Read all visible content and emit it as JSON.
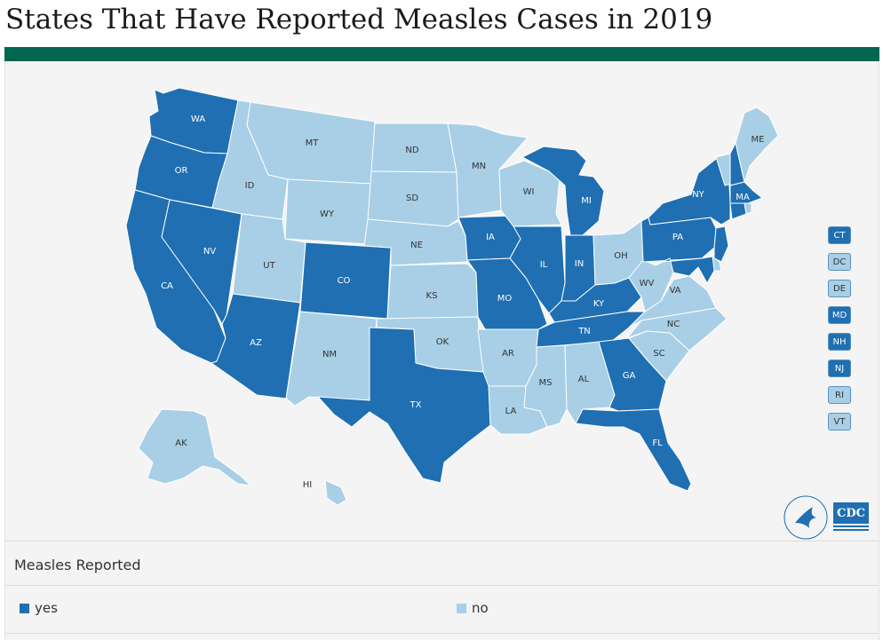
{
  "title": "States That Have Reported Measles Cases in 2019",
  "colors": {
    "yes": "#1f6fb2",
    "no": "#a8cfe6",
    "header_bar": "#006650",
    "label_yes": "#ffffff",
    "label_no": "#333333"
  },
  "states": [
    {
      "abbr": "WA",
      "reported": true
    },
    {
      "abbr": "OR",
      "reported": true
    },
    {
      "abbr": "CA",
      "reported": true
    },
    {
      "abbr": "NV",
      "reported": true
    },
    {
      "abbr": "ID",
      "reported": false
    },
    {
      "abbr": "MT",
      "reported": false
    },
    {
      "abbr": "WY",
      "reported": false
    },
    {
      "abbr": "UT",
      "reported": false
    },
    {
      "abbr": "AZ",
      "reported": true
    },
    {
      "abbr": "CO",
      "reported": true
    },
    {
      "abbr": "NM",
      "reported": false
    },
    {
      "abbr": "ND",
      "reported": false
    },
    {
      "abbr": "SD",
      "reported": false
    },
    {
      "abbr": "NE",
      "reported": false
    },
    {
      "abbr": "KS",
      "reported": false
    },
    {
      "abbr": "OK",
      "reported": false
    },
    {
      "abbr": "TX",
      "reported": true
    },
    {
      "abbr": "MN",
      "reported": false
    },
    {
      "abbr": "IA",
      "reported": true
    },
    {
      "abbr": "MO",
      "reported": true
    },
    {
      "abbr": "AR",
      "reported": false
    },
    {
      "abbr": "LA",
      "reported": false
    },
    {
      "abbr": "WI",
      "reported": false
    },
    {
      "abbr": "IL",
      "reported": true
    },
    {
      "abbr": "MI",
      "reported": true
    },
    {
      "abbr": "IN",
      "reported": true
    },
    {
      "abbr": "OH",
      "reported": false
    },
    {
      "abbr": "KY",
      "reported": true
    },
    {
      "abbr": "TN",
      "reported": true
    },
    {
      "abbr": "MS",
      "reported": false
    },
    {
      "abbr": "AL",
      "reported": false
    },
    {
      "abbr": "GA",
      "reported": true
    },
    {
      "abbr": "FL",
      "reported": true
    },
    {
      "abbr": "SC",
      "reported": false
    },
    {
      "abbr": "NC",
      "reported": false
    },
    {
      "abbr": "VA",
      "reported": false
    },
    {
      "abbr": "WV",
      "reported": false
    },
    {
      "abbr": "PA",
      "reported": true
    },
    {
      "abbr": "NY",
      "reported": true
    },
    {
      "abbr": "VT",
      "reported": false
    },
    {
      "abbr": "NH",
      "reported": true
    },
    {
      "abbr": "ME",
      "reported": false
    },
    {
      "abbr": "MA",
      "reported": true
    },
    {
      "abbr": "AK",
      "reported": false
    },
    {
      "abbr": "HI",
      "reported": false
    }
  ],
  "small_states": [
    {
      "abbr": "CT",
      "reported": true
    },
    {
      "abbr": "DC",
      "reported": false
    },
    {
      "abbr": "DE",
      "reported": false
    },
    {
      "abbr": "MD",
      "reported": true
    },
    {
      "abbr": "NH",
      "reported": true
    },
    {
      "abbr": "NJ",
      "reported": true
    },
    {
      "abbr": "RI",
      "reported": false
    },
    {
      "abbr": "VT",
      "reported": false
    }
  ],
  "legend": {
    "title": "Measles Reported",
    "items": [
      {
        "label": "yes",
        "color": "#1f6fb2"
      },
      {
        "label": "no",
        "color": "#a8cfe6"
      }
    ]
  },
  "logos": {
    "hhs": "hhs-eagle-logo",
    "cdc": "CDC"
  }
}
